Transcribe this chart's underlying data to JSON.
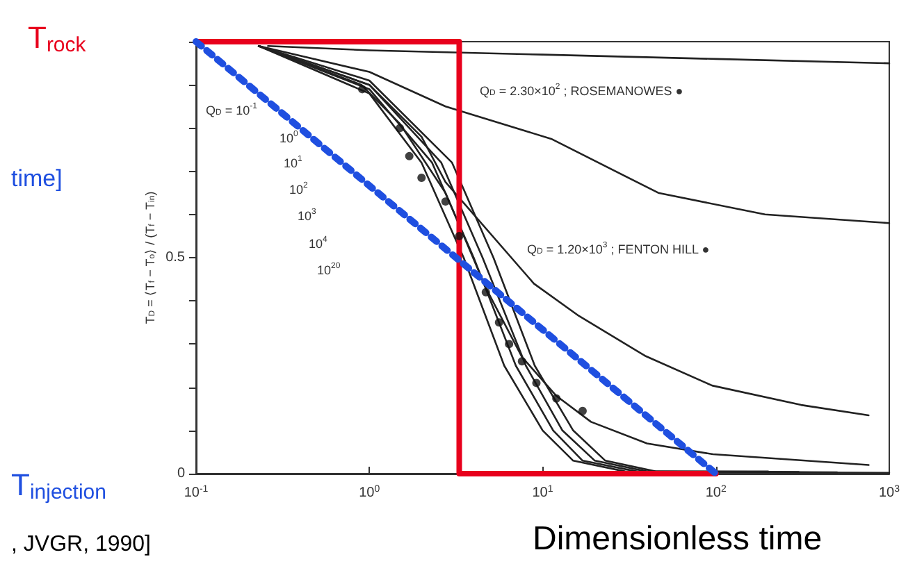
{
  "chart_data": {
    "type": "line",
    "xlabel": "Dimensionless time",
    "ylabel": "T$_{D}$ = ⟨T$_{f}$ − T$_{o}$⟩ / (T$_{f}$ − T$_{in}$)",
    "annotations": [
      "T$_{rock}$",
      "time]",
      "T$_{injection}$",
      ", JVGR, 1990]",
      "Q$_{D}$ = 10$^{-1}$",
      "10$^{0}$",
      "10$^{1}$",
      "10$^{2}$",
      "10$^{3}$",
      "10$^{4}$",
      "10$^{20}$",
      "Q$_{D}$ = 2.30×10$^{2}$ ; ROSEMANOWES ●",
      "Q$_{D}$ = 1.20×10$^{3}$ ; FENTON HILL ●"
    ],
    "log": "x",
    "grid": false,
    "marker": "none",
    "xlim": [
      0.1,
      1000
    ],
    "xticks": [
      {
        "value": 0.1,
        "label": "10$^{-1}$"
      },
      {
        "value": 1,
        "label": "10$^{0}$"
      },
      {
        "value": 10,
        "label": "10$^{1}$"
      },
      {
        "value": 100,
        "label": "10$^{2}$"
      },
      {
        "value": 1000,
        "label": "10$^{3}$"
      }
    ],
    "ylim": [
      0,
      1
    ],
    "yticks": [
      0,
      {
        "value": 0.1,
        "label": null
      },
      {
        "value": 0.2,
        "label": null
      },
      {
        "value": 0.3,
        "label": null
      },
      {
        "value": 0.4,
        "label": null
      },
      0.5,
      {
        "value": 0.6,
        "label": null
      },
      {
        "value": 0.7,
        "label": null
      },
      {
        "value": 0.8,
        "label": null
      },
      {
        "value": 0.9,
        "label": null
      },
      {
        "value": 1,
        "label": null
      }
    ],
    "series": [
      {
        "color": "#222222",
        "x": [
          0.26,
          1,
          10,
          100,
          1000
        ],
        "values": [
          0.99,
          0.98,
          0.97,
          0.96,
          0.95
        ]
      },
      {
        "color": "#222222",
        "x": [
          0.23,
          1,
          2.75,
          11.2,
          46.5,
          192,
          1000
        ],
        "values": [
          0.99,
          0.93,
          0.85,
          0.775,
          0.65,
          0.6,
          0.58
        ]
      },
      {
        "color": "#222222",
        "x": [
          0.23,
          1,
          2,
          2.75,
          8.9,
          16.2,
          38.9,
          95,
          310,
          760
        ],
        "values": [
          0.99,
          0.9,
          0.78,
          0.675,
          0.44,
          0.365,
          0.273,
          0.204,
          0.159,
          0.135
        ]
      },
      {
        "color": "#222222",
        "x": [
          0.23,
          0.9,
          1.5,
          2.75,
          4.7,
          7.6,
          12,
          19,
          40,
          96,
          760
        ],
        "values": [
          0.99,
          0.9,
          0.81,
          0.65,
          0.43,
          0.27,
          0.18,
          0.12,
          0.07,
          0.045,
          0.02
        ]
      },
      {
        "color": "#222222",
        "x": [
          0.23,
          1,
          2,
          3.5,
          6,
          10,
          15,
          30,
          1000
        ],
        "values": [
          0.99,
          0.88,
          0.72,
          0.5,
          0.25,
          0.1,
          0.03,
          0.005,
          0.002
        ]
      },
      {
        "color": "#222222",
        "x": [
          0.23,
          1,
          2.3,
          4,
          7,
          11.5,
          17,
          35,
          500
        ],
        "values": [
          0.99,
          0.89,
          0.72,
          0.5,
          0.25,
          0.1,
          0.03,
          0.005,
          0.003
        ]
      },
      {
        "color": "#222222",
        "x": [
          0.23,
          1,
          2.6,
          4.5,
          8,
          13,
          20,
          40,
          300
        ],
        "values": [
          0.99,
          0.9,
          0.72,
          0.5,
          0.25,
          0.1,
          0.03,
          0.005,
          0.004
        ]
      },
      {
        "color": "#222222",
        "x": [
          0.23,
          1,
          3,
          5.2,
          9,
          15,
          23,
          45,
          200
        ],
        "values": [
          0.99,
          0.91,
          0.72,
          0.5,
          0.25,
          0.1,
          0.03,
          0.005,
          0.005
        ]
      },
      {
        "type": "scatter",
        "marker": "circle",
        "color": "#111111",
        "x": [
          0.91,
          1.5,
          1.7,
          2.0,
          2.75,
          3.3,
          4.7,
          5.6,
          6.4,
          7.6,
          9.2,
          12,
          17
        ],
        "values": [
          0.89,
          0.8,
          0.735,
          0.685,
          0.63,
          0.55,
          0.42,
          0.35,
          0.3,
          0.26,
          0.21,
          0.174,
          0.145
        ]
      },
      {
        "color": "#e8001c",
        "x": [
          0.1,
          3.3,
          3.3,
          100
        ],
        "values": [
          1,
          1,
          0,
          0
        ]
      },
      {
        "color": "#1f4fe0",
        "line_style": "dotted",
        "x": [
          0.1,
          100
        ],
        "values": [
          1,
          0
        ]
      }
    ]
  }
}
